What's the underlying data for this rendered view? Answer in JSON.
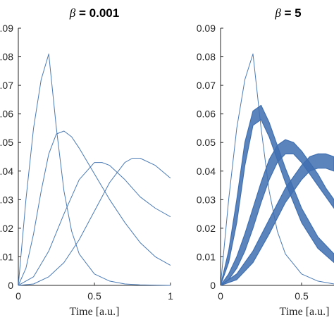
{
  "chart_data": [
    {
      "type": "line",
      "title_symbol": "β",
      "title_value": " = 0.001",
      "xlabel": "Time [a.u.]",
      "ylabel": "",
      "xlim": [
        0,
        1
      ],
      "ylim": [
        0,
        0.09
      ],
      "xticks": [
        "0",
        "0.5",
        "1"
      ],
      "yticks": [
        ".09",
        ".08",
        ".07",
        ".06",
        ".05",
        ".04",
        ".03",
        ".02",
        ".01",
        "0"
      ],
      "colors": {
        "line": "#4a7ab5",
        "axis": "#262626"
      },
      "series": [
        {
          "x": [
            0,
            0.05,
            0.1,
            0.15,
            0.2,
            0.25,
            0.3,
            0.35,
            0.4,
            0.5,
            0.6,
            0.7,
            0.8,
            0.9,
            1.0
          ],
          "y": [
            0,
            0.03,
            0.055,
            0.072,
            0.081,
            0.055,
            0.033,
            0.019,
            0.011,
            0.004,
            0.0015,
            0.0005,
            0.0002,
            0.0001,
            0
          ]
        },
        {
          "x": [
            0,
            0.05,
            0.1,
            0.15,
            0.2,
            0.25,
            0.3,
            0.35,
            0.4,
            0.5,
            0.6,
            0.7,
            0.8,
            0.9,
            1.0
          ],
          "y": [
            0,
            0.006,
            0.018,
            0.033,
            0.046,
            0.053,
            0.054,
            0.052,
            0.048,
            0.039,
            0.03,
            0.022,
            0.015,
            0.01,
            0.007
          ]
        },
        {
          "x": [
            0,
            0.1,
            0.2,
            0.3,
            0.4,
            0.5,
            0.55,
            0.6,
            0.7,
            0.8,
            0.9,
            1.0
          ],
          "y": [
            0,
            0.003,
            0.012,
            0.025,
            0.037,
            0.043,
            0.043,
            0.042,
            0.037,
            0.031,
            0.027,
            0.024
          ]
        },
        {
          "x": [
            0,
            0.1,
            0.2,
            0.3,
            0.4,
            0.5,
            0.6,
            0.7,
            0.75,
            0.8,
            0.9,
            1.0
          ],
          "y": [
            0,
            0.0005,
            0.003,
            0.008,
            0.016,
            0.026,
            0.036,
            0.043,
            0.0445,
            0.0445,
            0.042,
            0.0375
          ]
        }
      ]
    },
    {
      "type": "line",
      "title_symbol": "β",
      "title_value": " = 5",
      "xlabel": "Time [a.u.]",
      "ylabel": "",
      "xlim": [
        0,
        0.7
      ],
      "ylim": [
        0,
        0.09
      ],
      "xticks": [
        "0",
        "0.5"
      ],
      "yticks": [
        "0.09",
        "0.08",
        "0.07",
        "0.06",
        "0.05",
        "0.04",
        "0.03",
        "0.02",
        "0.01",
        "0"
      ],
      "colors": {
        "line": "#4a7ab5",
        "band": "#3f6fb0",
        "axis": "#262626"
      },
      "series": [
        {
          "x": [
            0,
            0.05,
            0.1,
            0.15,
            0.2,
            0.25,
            0.3,
            0.35,
            0.4,
            0.5,
            0.6,
            0.7
          ],
          "y": [
            0,
            0.03,
            0.055,
            0.072,
            0.081,
            0.055,
            0.033,
            0.019,
            0.011,
            0.004,
            0.0015,
            0.0005
          ]
        }
      ],
      "bands": [
        {
          "x": [
            0,
            0.05,
            0.1,
            0.15,
            0.2,
            0.25,
            0.3,
            0.35,
            0.4,
            0.5,
            0.6,
            0.7
          ],
          "lower": [
            0,
            0.008,
            0.022,
            0.042,
            0.056,
            0.058,
            0.052,
            0.044,
            0.036,
            0.022,
            0.013,
            0.008
          ],
          "upper": [
            0,
            0.012,
            0.03,
            0.05,
            0.061,
            0.063,
            0.057,
            0.049,
            0.041,
            0.027,
            0.017,
            0.011
          ]
        },
        {
          "x": [
            0,
            0.05,
            0.1,
            0.15,
            0.2,
            0.25,
            0.3,
            0.35,
            0.4,
            0.45,
            0.5,
            0.55,
            0.6,
            0.65,
            0.7
          ],
          "lower": [
            0,
            0.002,
            0.006,
            0.012,
            0.02,
            0.029,
            0.037,
            0.043,
            0.046,
            0.046,
            0.043,
            0.039,
            0.035,
            0.031,
            0.027
          ],
          "upper": [
            0,
            0.004,
            0.01,
            0.018,
            0.027,
            0.036,
            0.044,
            0.049,
            0.051,
            0.05,
            0.047,
            0.043,
            0.039,
            0.034,
            0.03
          ]
        },
        {
          "x": [
            0,
            0.1,
            0.2,
            0.3,
            0.4,
            0.5,
            0.55,
            0.6,
            0.65,
            0.7
          ],
          "lower": [
            0,
            0.002,
            0.008,
            0.018,
            0.029,
            0.037,
            0.04,
            0.041,
            0.041,
            0.04
          ],
          "upper": [
            0,
            0.004,
            0.012,
            0.023,
            0.034,
            0.042,
            0.045,
            0.046,
            0.046,
            0.045
          ]
        }
      ]
    }
  ]
}
